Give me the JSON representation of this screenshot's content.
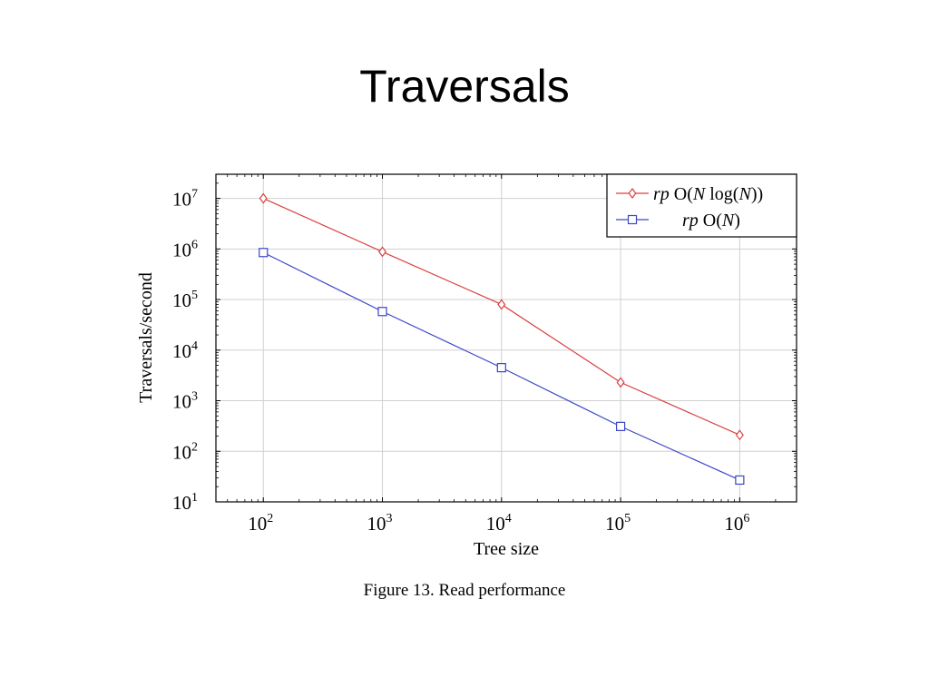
{
  "slide": {
    "title": "Traversals"
  },
  "caption": "Figure 13. Read performance",
  "colors": {
    "rp_nlogn": "#d9413f",
    "rp_n": "#3b47c7",
    "grid": "#d0d0d0"
  },
  "chart_data": {
    "type": "line",
    "title": "",
    "xlabel": "Tree size",
    "ylabel": "Traversals/second",
    "xscale": "log",
    "yscale": "log",
    "xlim": [
      40,
      3000000
    ],
    "ylim": [
      10,
      30000000
    ],
    "xticks": [
      {
        "value": 100,
        "base": "10",
        "exp": "2"
      },
      {
        "value": 1000,
        "base": "10",
        "exp": "3"
      },
      {
        "value": 10000,
        "base": "10",
        "exp": "4"
      },
      {
        "value": 100000,
        "base": "10",
        "exp": "5"
      },
      {
        "value": 1000000,
        "base": "10",
        "exp": "6"
      }
    ],
    "yticks": [
      {
        "value": 10,
        "base": "10",
        "exp": "1"
      },
      {
        "value": 100,
        "base": "10",
        "exp": "2"
      },
      {
        "value": 1000,
        "base": "10",
        "exp": "3"
      },
      {
        "value": 10000,
        "base": "10",
        "exp": "4"
      },
      {
        "value": 100000,
        "base": "10",
        "exp": "5"
      },
      {
        "value": 1000000,
        "base": "10",
        "exp": "6"
      },
      {
        "value": 10000000,
        "base": "10",
        "exp": "7"
      }
    ],
    "grid": true,
    "legend_position": "top-right",
    "x": [
      100,
      1000,
      10000,
      100000,
      1000000
    ],
    "series": [
      {
        "name": "rp O(N log(N))",
        "label_parts": [
          {
            "t": "rp",
            "i": true
          },
          {
            "t": " O(",
            "i": false
          },
          {
            "t": "N",
            "i": true
          },
          {
            "t": " log(",
            "i": false
          },
          {
            "t": "N",
            "i": true
          },
          {
            "t": "))",
            "i": false
          }
        ],
        "marker": "diamond",
        "color": "#d9413f",
        "values": [
          10000000,
          880000,
          80000,
          2300,
          210
        ]
      },
      {
        "name": "rp O(N)",
        "label_parts": [
          {
            "t": "rp",
            "i": true
          },
          {
            "t": " O(",
            "i": false
          },
          {
            "t": "N",
            "i": true
          },
          {
            "t": ")",
            "i": false
          }
        ],
        "marker": "square",
        "color": "#3b47c7",
        "values": [
          850000,
          58000,
          4500,
          310,
          27
        ]
      }
    ]
  }
}
